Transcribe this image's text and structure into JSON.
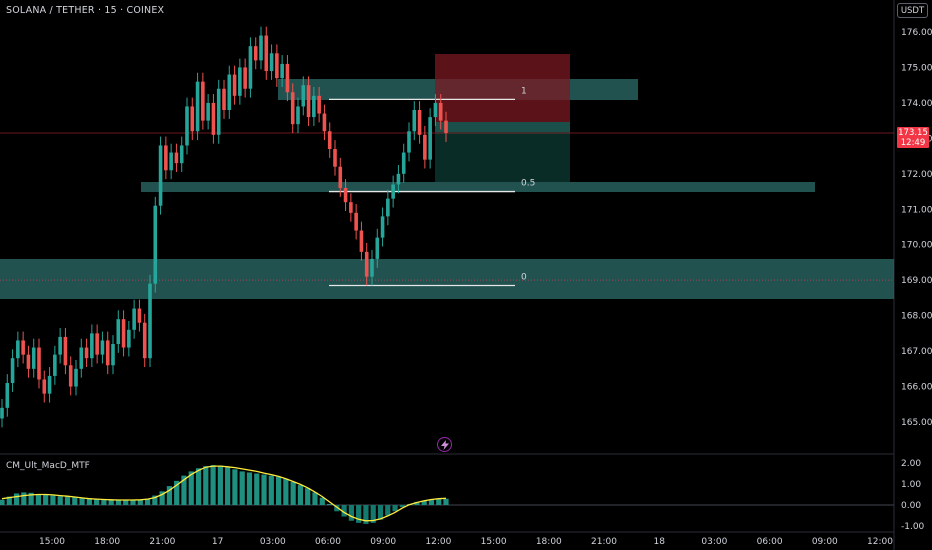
{
  "header": {
    "symbol": "SOLANA / TETHER · 15 · COINEX",
    "currency": "USDT"
  },
  "price_badge": {
    "price": "173.15",
    "countdown": "12:49"
  },
  "indicator": {
    "name": "CM_Ult_MacD_MTF",
    "yticks": [
      2.0,
      1.0,
      0.0,
      -1.0
    ],
    "ytick_labels": [
      "2.00",
      "1.00",
      "0.00",
      "-1.00"
    ]
  },
  "colors": {
    "up": "#26a69a",
    "down": "#ef5350",
    "zone": "#2c6e6b",
    "signal": "#ffeb3b",
    "price_tag": "#f23645",
    "alert_icon": "#9c27b0"
  },
  "icons": {
    "alert": "lightning-bolt-icon"
  },
  "fib_labels": [
    "1",
    "0.5",
    "0"
  ],
  "chart_data": {
    "type": "candlestick",
    "y_ticks": [
      165,
      166,
      167,
      168,
      169,
      170,
      171,
      172,
      173,
      174,
      175,
      176
    ],
    "y_tick_labels": [
      "165.00",
      "166.00",
      "167.00",
      "168.00",
      "169.00",
      "170.00",
      "171.00",
      "172.00",
      "173.00",
      "174.00",
      "175.00",
      "176.00"
    ],
    "ylim": [
      164.3,
      176.5
    ],
    "x_ticks": [
      "15:00",
      "18:00",
      "21:00",
      "17",
      "03:00",
      "06:00",
      "09:00",
      "12:00",
      "15:00",
      "18:00",
      "21:00",
      "18",
      "03:00",
      "06:00",
      "09:00",
      "12:00"
    ],
    "last_price": 173.15,
    "horizontal_line": 169.0,
    "fib_levels": [
      {
        "label": "1",
        "price": 174.1
      },
      {
        "label": "0.5",
        "price": 171.5
      },
      {
        "label": "0",
        "price": 168.85
      }
    ],
    "candles_close": [
      165.4,
      166.1,
      166.8,
      167.3,
      166.9,
      166.5,
      167.1,
      166.2,
      165.8,
      166.3,
      166.9,
      167.4,
      166.6,
      166.0,
      166.5,
      167.1,
      166.8,
      167.5,
      166.9,
      167.3,
      166.6,
      167.2,
      167.9,
      167.1,
      167.6,
      168.2,
      167.8,
      166.8,
      168.9,
      171.1,
      172.8,
      172.1,
      172.6,
      172.3,
      172.8,
      173.9,
      173.2,
      174.6,
      173.5,
      174.0,
      173.1,
      174.4,
      173.8,
      174.8,
      174.2,
      175.0,
      174.4,
      175.6,
      175.2,
      175.9,
      174.9,
      175.4,
      174.7,
      175.1,
      174.3,
      173.4,
      173.9,
      174.5,
      173.6,
      174.2,
      173.7,
      173.2,
      172.7,
      172.2,
      171.6,
      171.2,
      170.9,
      170.4,
      169.8,
      169.1,
      169.6,
      170.2,
      170.8,
      171.3,
      171.7,
      172.0,
      172.6,
      173.2,
      173.8,
      173.1,
      172.4,
      173.6,
      174.0,
      173.5,
      173.15
    ],
    "macd_histogram": [
      0.25,
      0.4,
      0.55,
      0.6,
      0.58,
      0.52,
      0.48,
      0.45,
      0.42,
      0.4,
      0.38,
      0.35,
      0.32,
      0.3,
      0.28,
      0.26,
      0.25,
      0.24,
      0.24,
      0.25,
      0.3,
      0.45,
      0.65,
      0.9,
      1.15,
      1.4,
      1.6,
      1.75,
      1.85,
      1.9,
      1.88,
      1.8,
      1.7,
      1.6,
      1.55,
      1.5,
      1.45,
      1.4,
      1.35,
      1.25,
      1.1,
      0.95,
      0.8,
      0.6,
      0.35,
      0.05,
      -0.3,
      -0.55,
      -0.75,
      -0.85,
      -0.9,
      -0.85,
      -0.7,
      -0.5,
      -0.3,
      -0.1,
      0.05,
      0.15,
      0.2,
      0.25,
      0.28,
      0.3
    ],
    "macd_signal": [
      0.3,
      0.35,
      0.4,
      0.45,
      0.48,
      0.5,
      0.5,
      0.48,
      0.45,
      0.42,
      0.38,
      0.34,
      0.3,
      0.28,
      0.26,
      0.25,
      0.24,
      0.24,
      0.24,
      0.25,
      0.28,
      0.35,
      0.5,
      0.7,
      0.95,
      1.2,
      1.45,
      1.65,
      1.8,
      1.85,
      1.85,
      1.82,
      1.78,
      1.72,
      1.66,
      1.6,
      1.52,
      1.45,
      1.36,
      1.25,
      1.12,
      0.98,
      0.82,
      0.62,
      0.4,
      0.15,
      -0.1,
      -0.35,
      -0.55,
      -0.68,
      -0.75,
      -0.74,
      -0.66,
      -0.52,
      -0.35,
      -0.15,
      0.02,
      0.12,
      0.2,
      0.26,
      0.3,
      0.32
    ]
  }
}
